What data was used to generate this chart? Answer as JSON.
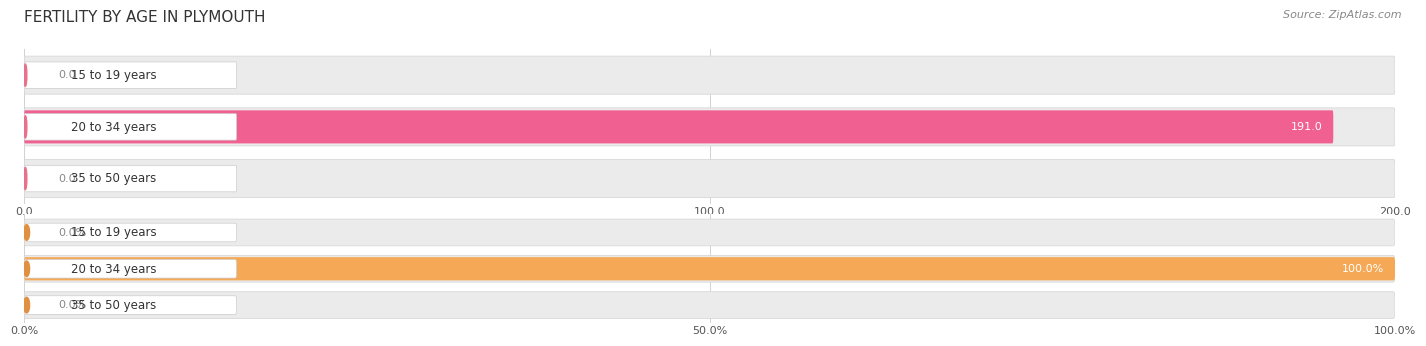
{
  "title": "FERTILITY BY AGE IN PLYMOUTH",
  "source": "Source: ZipAtlas.com",
  "top_chart": {
    "categories": [
      "15 to 19 years",
      "20 to 34 years",
      "35 to 50 years"
    ],
    "values": [
      0.0,
      191.0,
      0.0
    ],
    "xlim": [
      0,
      200.0
    ],
    "xticks": [
      0.0,
      100.0,
      200.0
    ],
    "xtick_labels": [
      "0.0",
      "100.0",
      "200.0"
    ],
    "bar_color": "#F06090",
    "label_color_inside": "#FFFFFF",
    "label_color_outside": "#888888",
    "value_threshold": 50
  },
  "bottom_chart": {
    "categories": [
      "15 to 19 years",
      "20 to 34 years",
      "35 to 50 years"
    ],
    "values": [
      0.0,
      100.0,
      0.0
    ],
    "xlim": [
      0,
      100.0
    ],
    "xticks": [
      0.0,
      50.0,
      100.0
    ],
    "xtick_labels": [
      "0.0%",
      "50.0%",
      "100.0%"
    ],
    "bar_color": "#F5A855",
    "label_color_inside": "#FFFFFF",
    "label_color_outside": "#888888",
    "value_threshold": 30
  },
  "label_circle_color_top": "#E8708A",
  "label_circle_color_bottom": "#E09040",
  "row_bg_color": "#EBEBEB",
  "row_border_color": "#D8D8D8",
  "title_fontsize": 11,
  "source_fontsize": 8,
  "axis_fontsize": 8,
  "label_fontsize": 8.5,
  "value_fontsize": 8
}
